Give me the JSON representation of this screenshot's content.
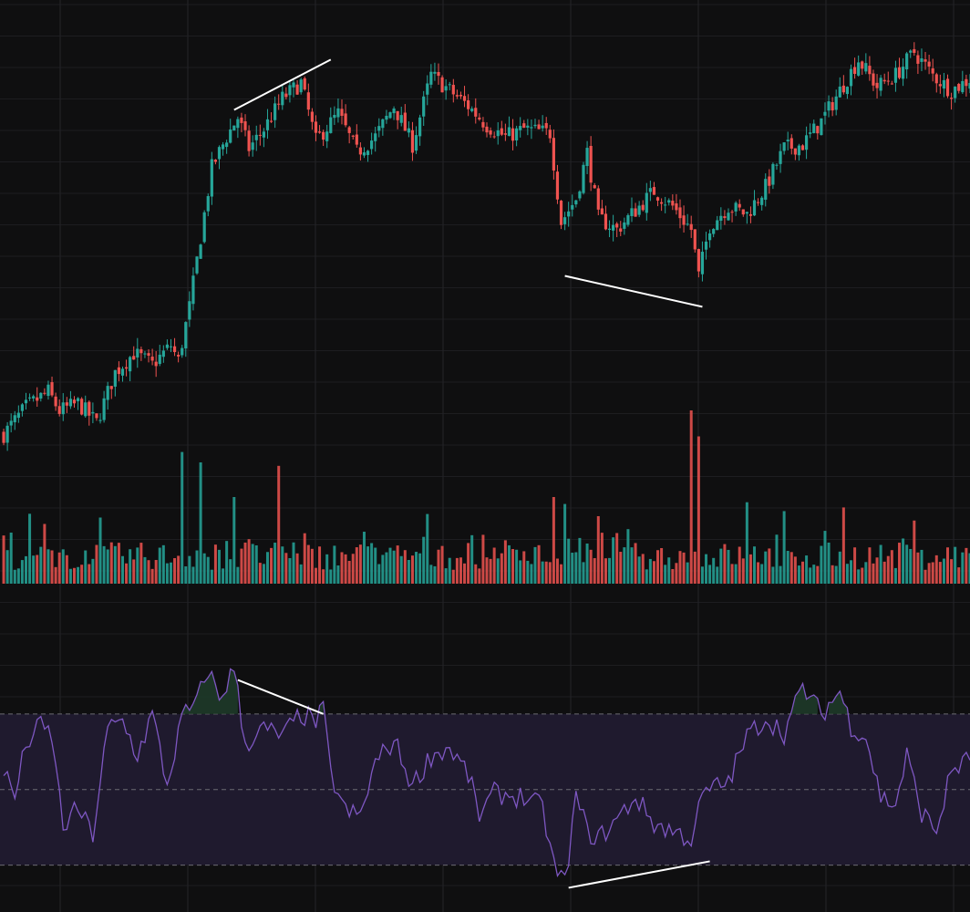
{
  "theme": {
    "background": "#0f0f10",
    "grid": "#242427",
    "up": "#26a69a",
    "down": "#ef5350",
    "rsi_line": "#7e57c2",
    "rsi_band": "#1f1a2e",
    "overbought_fill": "#1e3a29",
    "divergence_line": "#ffffff"
  },
  "chart_data": [
    {
      "type": "candlestick",
      "panel": "price",
      "title": "",
      "xlabel": "",
      "ylabel": "",
      "grid": true,
      "legend": "none",
      "x_range": [
        0,
        260
      ],
      "ylim": [
        0,
        100
      ],
      "anchor_closes": [
        [
          0,
          3
        ],
        [
          6,
          10
        ],
        [
          12,
          14
        ],
        [
          15,
          9
        ],
        [
          20,
          11
        ],
        [
          25,
          6
        ],
        [
          30,
          19
        ],
        [
          35,
          24
        ],
        [
          40,
          21
        ],
        [
          45,
          26
        ],
        [
          47,
          22
        ],
        [
          50,
          36
        ],
        [
          53,
          54
        ],
        [
          56,
          72
        ],
        [
          60,
          80
        ],
        [
          63,
          85
        ],
        [
          66,
          77
        ],
        [
          70,
          82
        ],
        [
          75,
          90
        ],
        [
          80,
          94
        ],
        [
          84,
          79
        ],
        [
          90,
          86
        ],
        [
          95,
          76
        ],
        [
          100,
          80
        ],
        [
          105,
          88
        ],
        [
          110,
          78
        ],
        [
          115,
          96
        ],
        [
          120,
          92
        ],
        [
          125,
          88
        ],
        [
          130,
          83
        ],
        [
          135,
          80
        ],
        [
          140,
          82
        ],
        [
          147,
          81
        ],
        [
          150,
          58
        ],
        [
          154,
          64
        ],
        [
          157,
          76
        ],
        [
          160,
          59
        ],
        [
          165,
          56
        ],
        [
          170,
          61
        ],
        [
          175,
          66
        ],
        [
          180,
          62
        ],
        [
          185,
          56
        ],
        [
          187,
          44
        ],
        [
          190,
          57
        ],
        [
          195,
          62
        ],
        [
          200,
          60
        ],
        [
          205,
          67
        ],
        [
          210,
          77
        ],
        [
          215,
          78
        ],
        [
          220,
          84
        ],
        [
          225,
          92
        ],
        [
          230,
          100
        ],
        [
          235,
          93
        ],
        [
          240,
          96
        ],
        [
          245,
          102
        ],
        [
          250,
          96
        ],
        [
          255,
          92
        ],
        [
          260,
          95
        ]
      ],
      "divergence_lines": [
        {
          "from": [
            62,
            87
          ],
          "to": [
            88,
            100
          ]
        },
        {
          "from": [
            151,
            44
          ],
          "to": [
            188,
            36
          ]
        }
      ]
    },
    {
      "type": "bar",
      "panel": "volume",
      "title": "",
      "grid": true,
      "x_range": [
        0,
        260
      ],
      "ylim": [
        0,
        100
      ],
      "spikes": [
        [
          48,
          76
        ],
        [
          53,
          70
        ],
        [
          62,
          50
        ],
        [
          74,
          68
        ],
        [
          148,
          50
        ],
        [
          151,
          46
        ],
        [
          185,
          100
        ],
        [
          187,
          85
        ],
        [
          200,
          47
        ],
        [
          226,
          44
        ]
      ]
    },
    {
      "type": "line",
      "panel": "rsi",
      "title": "",
      "grid": true,
      "x_range": [
        0,
        260
      ],
      "ylim": [
        20,
        90
      ],
      "levels": [
        70,
        50,
        30
      ],
      "anchors": [
        [
          0,
          55
        ],
        [
          3,
          48
        ],
        [
          6,
          62
        ],
        [
          10,
          67
        ],
        [
          13,
          64
        ],
        [
          16,
          40
        ],
        [
          20,
          45
        ],
        [
          24,
          38
        ],
        [
          28,
          66
        ],
        [
          32,
          68
        ],
        [
          36,
          59
        ],
        [
          40,
          70
        ],
        [
          44,
          51
        ],
        [
          48,
          69
        ],
        [
          52,
          73
        ],
        [
          55,
          82
        ],
        [
          58,
          74
        ],
        [
          62,
          82
        ],
        [
          65,
          62
        ],
        [
          70,
          66
        ],
        [
          75,
          64
        ],
        [
          80,
          70
        ],
        [
          84,
          68
        ],
        [
          86,
          71
        ],
        [
          88,
          54
        ],
        [
          92,
          44
        ],
        [
          96,
          43
        ],
        [
          100,
          57
        ],
        [
          105,
          63
        ],
        [
          110,
          51
        ],
        [
          115,
          59
        ],
        [
          120,
          61
        ],
        [
          125,
          54
        ],
        [
          128,
          43
        ],
        [
          132,
          49
        ],
        [
          140,
          48
        ],
        [
          145,
          45
        ],
        [
          148,
          30
        ],
        [
          151,
          25
        ],
        [
          154,
          48
        ],
        [
          157,
          39
        ],
        [
          160,
          37
        ],
        [
          165,
          42
        ],
        [
          170,
          48
        ],
        [
          175,
          41
        ],
        [
          180,
          39
        ],
        [
          185,
          37
        ],
        [
          188,
          48
        ],
        [
          190,
          50
        ],
        [
          195,
          52
        ],
        [
          200,
          64
        ],
        [
          205,
          69
        ],
        [
          210,
          65
        ],
        [
          215,
          77
        ],
        [
          220,
          70
        ],
        [
          225,
          76
        ],
        [
          228,
          67
        ],
        [
          232,
          64
        ],
        [
          236,
          48
        ],
        [
          240,
          46
        ],
        [
          243,
          59
        ],
        [
          247,
          44
        ],
        [
          251,
          39
        ],
        [
          255,
          55
        ],
        [
          260,
          58
        ]
      ],
      "divergence_lines": [
        {
          "from": [
            63,
            79
          ],
          "to": [
            86,
            70
          ]
        },
        {
          "from": [
            152,
            24
          ],
          "to": [
            190,
            31
          ]
        }
      ]
    }
  ]
}
